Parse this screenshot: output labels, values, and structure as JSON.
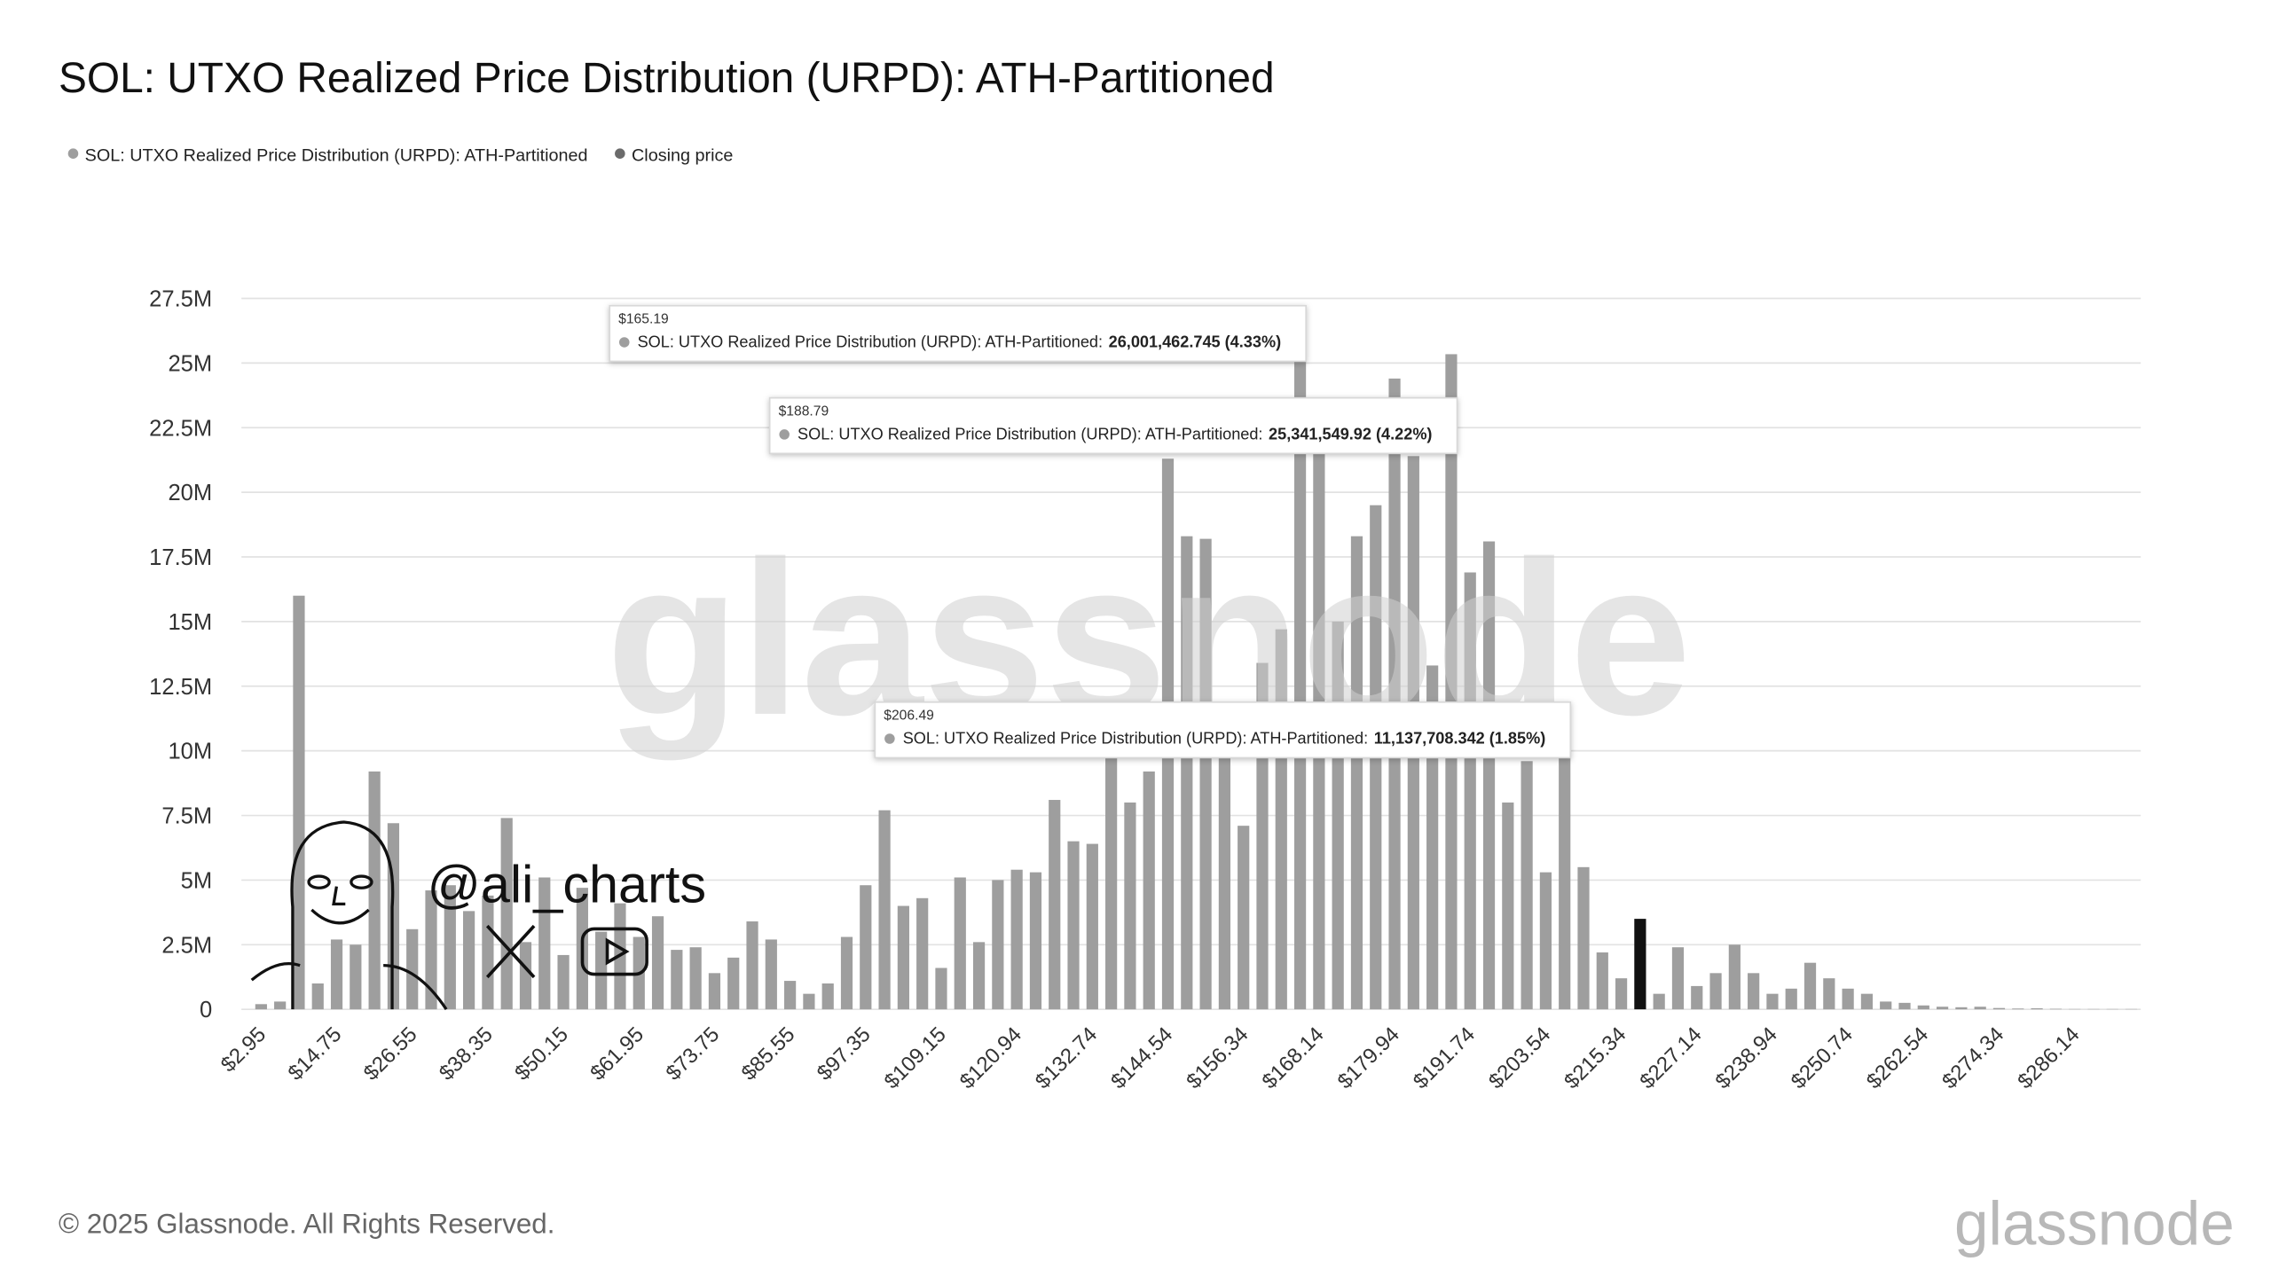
{
  "chart_data": {
    "type": "bar",
    "title": "SOL: UTXO Realized Price Distribution (URPD): ATH-Partitioned",
    "categories": [
      "$2.95",
      null,
      null,
      null,
      "$14.75",
      null,
      null,
      null,
      "$26.55",
      null,
      null,
      null,
      "$38.35",
      null,
      null,
      null,
      "$50.15",
      null,
      null,
      null,
      "$61.95",
      null,
      null,
      null,
      "$73.75",
      null,
      null,
      null,
      "$85.55",
      null,
      null,
      null,
      "$97.35",
      null,
      null,
      null,
      "$109.15",
      null,
      null,
      null,
      "$120.94",
      null,
      null,
      null,
      "$132.74",
      null,
      null,
      null,
      "$144.54",
      null,
      null,
      null,
      "$156.34",
      null,
      null,
      null,
      "$168.14",
      null,
      null,
      null,
      "$179.94",
      null,
      null,
      null,
      "$191.74",
      null,
      null,
      null,
      "$203.54",
      null,
      null,
      null,
      "$215.34",
      null,
      null,
      null,
      "$227.14",
      null,
      null,
      null,
      "$238.94",
      null,
      null,
      null,
      "$250.74",
      null,
      null,
      null,
      "$262.54",
      null,
      null,
      null,
      "$274.34",
      null,
      null,
      null,
      "$286.14",
      null,
      null,
      null
    ],
    "series": [
      {
        "name": "SOL: UTXO Realized Price Distribution (URPD): ATH-Partitioned",
        "color": "#9e9e9e",
        "values": [
          200000,
          300000,
          16000000,
          1000000,
          2700000,
          2500000,
          9200000,
          7200000,
          3100000,
          4600000,
          4800000,
          3800000,
          4400000,
          7400000,
          2600000,
          5100000,
          2100000,
          4700000,
          3000000,
          4100000,
          2800000,
          3600000,
          2300000,
          2400000,
          1400000,
          2000000,
          3400000,
          2700000,
          1100000,
          600000,
          1000000,
          2800000,
          4800000,
          7700000,
          4000000,
          4300000,
          1600000,
          5100000,
          2600000,
          5000000,
          5400000,
          5300000,
          8100000,
          6500000,
          6400000,
          10200000,
          8000000,
          9200000,
          21300000,
          18300000,
          18200000,
          10500000,
          7100000,
          13400000,
          14700000,
          26001462.745,
          21600000,
          15000000,
          18300000,
          19500000,
          24400000,
          21400000,
          13300000,
          25341549.92,
          16900000,
          18100000,
          8000000,
          9600000,
          5300000,
          11137708.342,
          5500000,
          2200000,
          1200000,
          null,
          600000,
          2400000,
          900000,
          1400000,
          2500000,
          1400000,
          600000,
          800000,
          1800000,
          1200000,
          800000,
          600000,
          300000,
          250000,
          150000,
          100000,
          80000,
          100000,
          50000,
          30000,
          40000,
          20000,
          10000,
          10000,
          10000,
          10000
        ]
      },
      {
        "name": "Closing price",
        "color": "#111111",
        "legend_color": "#6b6b6b",
        "values": [
          null,
          null,
          null,
          null,
          null,
          null,
          null,
          null,
          null,
          null,
          null,
          null,
          null,
          null,
          null,
          null,
          null,
          null,
          null,
          null,
          null,
          null,
          null,
          null,
          null,
          null,
          null,
          null,
          null,
          null,
          null,
          null,
          null,
          null,
          null,
          null,
          null,
          null,
          null,
          null,
          null,
          null,
          null,
          null,
          null,
          null,
          null,
          null,
          null,
          null,
          null,
          null,
          null,
          null,
          null,
          null,
          null,
          null,
          null,
          null,
          null,
          null,
          null,
          null,
          null,
          null,
          null,
          null,
          null,
          null,
          null,
          null,
          null,
          3500000,
          null,
          null,
          null,
          null,
          null,
          null,
          null,
          null,
          null,
          null,
          null,
          null,
          null,
          null,
          null,
          null,
          null,
          null,
          null,
          null,
          null,
          null,
          null,
          null,
          null,
          null
        ]
      }
    ],
    "ylim": [
      0,
      27500000
    ],
    "yticks": [
      0,
      {
        "value": 2500000,
        "label": "2.5M"
      },
      {
        "value": 5000000,
        "label": "5M"
      },
      {
        "value": 7500000,
        "label": "7.5M"
      },
      {
        "value": 10000000,
        "label": "10M"
      },
      {
        "value": 12500000,
        "label": "12.5M"
      },
      {
        "value": 15000000,
        "label": "15M"
      },
      {
        "value": 17500000,
        "label": "17.5M"
      },
      {
        "value": 20000000,
        "label": "20M"
      },
      {
        "value": 22500000,
        "label": "22.5M"
      },
      {
        "value": 25000000,
        "label": "25M"
      },
      {
        "value": 27500000,
        "label": "27.5M"
      }
    ],
    "grid": true,
    "tooltips": [
      {
        "title": "$165.19",
        "label": "SOL: UTXO Realized Price Distribution (URPD): ATH-Partitioned:",
        "value": "26,001,462.745 (4.33%)"
      },
      {
        "title": "$188.79",
        "label": "SOL: UTXO Realized Price Distribution (URPD): ATH-Partitioned:",
        "value": "25,341,549.92 (4.22%)"
      },
      {
        "title": "$206.49",
        "label": "SOL: UTXO Realized Price Distribution (URPD): ATH-Partitioned:",
        "value": "11,137,708.342 (1.85%)"
      }
    ],
    "watermark": "glassnode",
    "author": "@ali_charts",
    "footer": "© 2025 Glassnode. All Rights Reserved.",
    "logo": "glassnode"
  }
}
